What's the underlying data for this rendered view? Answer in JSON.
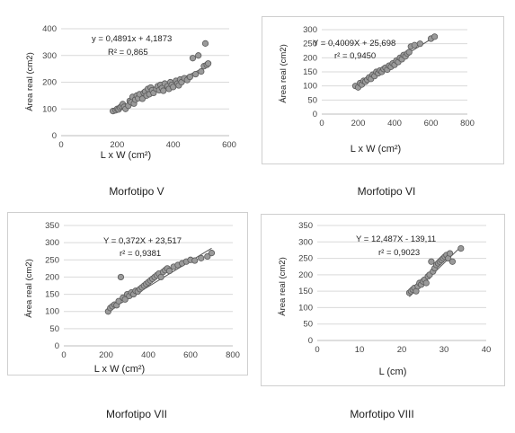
{
  "chart_data": [
    {
      "type": "scatter",
      "equation": "y = 0,4891x + 4,1873",
      "r2": "R² = 0,865",
      "xlabel": "L x W (cm²)",
      "ylabel": "Área real (cm2)",
      "caption": "Morfotipo V",
      "xlim": [
        0,
        600
      ],
      "ylim": [
        0,
        400
      ],
      "xticks": [
        "0",
        "200",
        "400",
        "600"
      ],
      "yticks": [
        "0",
        "100",
        "200",
        "300",
        "400"
      ],
      "trend": {
        "slope": 0.4891,
        "intercept": 4.1873
      },
      "x": [
        185,
        195,
        200,
        205,
        210,
        215,
        220,
        225,
        230,
        240,
        245,
        250,
        255,
        260,
        265,
        270,
        275,
        280,
        290,
        295,
        300,
        305,
        310,
        315,
        320,
        325,
        330,
        340,
        345,
        350,
        355,
        360,
        365,
        370,
        380,
        385,
        390,
        395,
        400,
        410,
        415,
        420,
        425,
        430,
        440,
        450,
        460,
        470,
        480,
        490,
        500,
        510,
        515,
        520,
        525
      ],
      "y": [
        92,
        95,
        100,
        98,
        105,
        110,
        118,
        108,
        100,
        112,
        130,
        125,
        145,
        120,
        135,
        150,
        140,
        155,
        138,
        160,
        165,
        150,
        175,
        155,
        180,
        170,
        160,
        175,
        185,
        170,
        190,
        178,
        168,
        195,
        185,
        175,
        200,
        190,
        182,
        205,
        195,
        188,
        210,
        200,
        215,
        208,
        220,
        290,
        230,
        300,
        240,
        260,
        345,
        265,
        270
      ]
    },
    {
      "type": "scatter",
      "equation": "Y = 0,4009X + 25,698",
      "r2": "r² = 0,9450",
      "xlabel": "L x W (cm²)",
      "ylabel": "Área real (cm2)",
      "caption": "Morfotipo VI",
      "xlim": [
        0,
        800
      ],
      "ylim": [
        0,
        300
      ],
      "xticks": [
        "0",
        "200",
        "400",
        "600",
        "800"
      ],
      "yticks": [
        "0",
        "50",
        "100",
        "150",
        "200",
        "250",
        "300"
      ],
      "trend": {
        "slope": 0.4009,
        "intercept": 25.698
      },
      "x": [
        185,
        200,
        210,
        220,
        230,
        240,
        250,
        260,
        270,
        280,
        290,
        300,
        310,
        320,
        330,
        340,
        350,
        360,
        370,
        380,
        390,
        400,
        410,
        420,
        430,
        440,
        450,
        460,
        470,
        480,
        490,
        510,
        540,
        600,
        620
      ],
      "y": [
        100,
        95,
        110,
        105,
        118,
        115,
        122,
        130,
        125,
        140,
        135,
        150,
        145,
        155,
        150,
        160,
        165,
        158,
        172,
        168,
        180,
        175,
        190,
        185,
        200,
        195,
        210,
        205,
        215,
        220,
        240,
        245,
        250,
        268,
        275
      ]
    },
    {
      "type": "scatter",
      "equation": "Y = 0,372X + 23,517",
      "r2": "r² = 0,9381",
      "xlabel": "L x W (cm²)",
      "ylabel": "Área real (cm2)",
      "caption": "Morfotipo VII",
      "xlim": [
        0,
        800
      ],
      "ylim": [
        0,
        350
      ],
      "xticks": [
        "0",
        "200",
        "400",
        "600",
        "800"
      ],
      "yticks": [
        "0",
        "50",
        "100",
        "150",
        "200",
        "250",
        "300",
        "350"
      ],
      "trend": {
        "slope": 0.372,
        "intercept": 23.517
      },
      "x": [
        210,
        220,
        230,
        240,
        250,
        260,
        270,
        280,
        290,
        300,
        310,
        320,
        330,
        340,
        350,
        360,
        370,
        380,
        390,
        400,
        410,
        420,
        430,
        440,
        450,
        460,
        470,
        480,
        490,
        500,
        520,
        540,
        560,
        580,
        600,
        620,
        650,
        680,
        700
      ],
      "y": [
        100,
        110,
        115,
        120,
        118,
        130,
        200,
        140,
        135,
        150,
        145,
        155,
        150,
        160,
        158,
        165,
        170,
        175,
        180,
        185,
        190,
        195,
        200,
        205,
        210,
        200,
        215,
        220,
        225,
        218,
        230,
        235,
        240,
        245,
        250,
        248,
        255,
        260,
        270
      ]
    },
    {
      "type": "scatter",
      "equation": "Y = 12,487X - 139,11",
      "r2": "r² = 0,9023",
      "xlabel": "L (cm)",
      "ylabel": "Área real (cm2)",
      "caption": "Morfotipo VIII",
      "xlim": [
        0,
        40
      ],
      "ylim": [
        0,
        350
      ],
      "xticks": [
        "0",
        "10",
        "20",
        "30",
        "40"
      ],
      "yticks": [
        "0",
        "50",
        "100",
        "150",
        "200",
        "250",
        "300",
        "350"
      ],
      "trend": {
        "slope": 12.487,
        "intercept": -139.11
      },
      "x": [
        21.8,
        22.2,
        22.6,
        23.0,
        23.4,
        23.8,
        24.2,
        24.6,
        25.0,
        25.4,
        25.8,
        26.2,
        26.6,
        27.0,
        27.4,
        27.8,
        28.2,
        28.6,
        29.0,
        29.4,
        29.8,
        30.2,
        30.6,
        31.0,
        31.4,
        32.0,
        34.0
      ],
      "y": [
        145,
        150,
        155,
        160,
        150,
        165,
        175,
        170,
        180,
        185,
        175,
        195,
        200,
        240,
        210,
        220,
        230,
        235,
        240,
        245,
        250,
        255,
        260,
        250,
        265,
        240,
        280
      ]
    }
  ]
}
